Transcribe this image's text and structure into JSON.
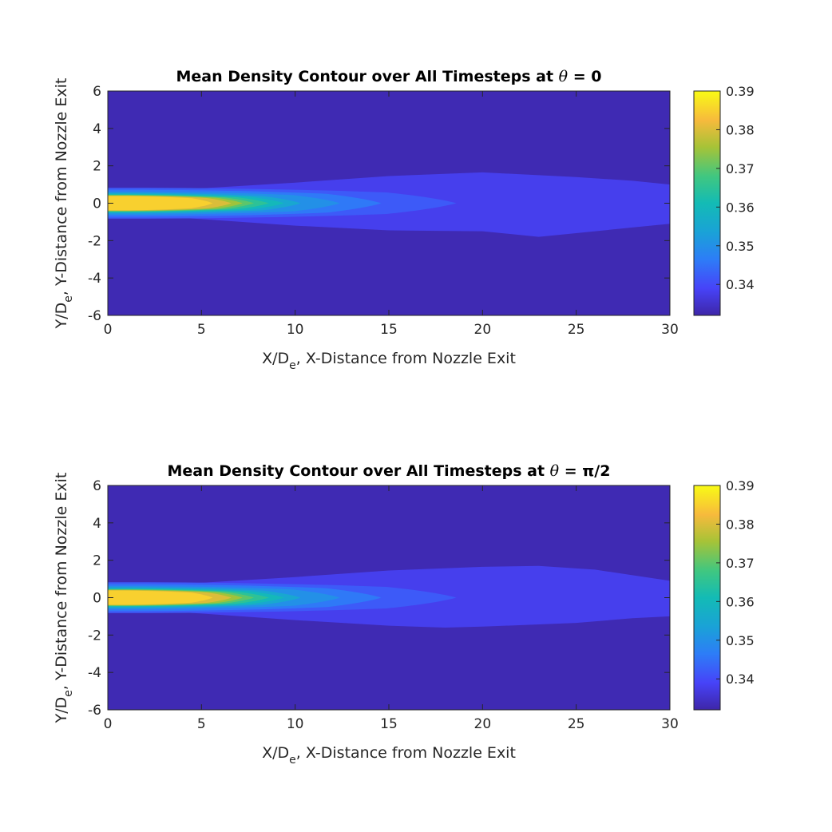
{
  "chart_data": [
    {
      "type": "heatmap",
      "title": "Mean Density Contour over All Timesteps at",
      "title_symbol": "θ",
      "title_value": " = 0",
      "xlabel": "X/D",
      "xlabel_sub": "e",
      "xlabel_rest": ", X-Distance from Nozzle Exit",
      "ylabel": "Y/D",
      "ylabel_sub": "e",
      "ylabel_rest": ", Y-Distance from Nozzle Exit",
      "xlim": [
        0,
        30
      ],
      "ylim": [
        -6,
        6
      ],
      "xticks": [
        "0",
        "5",
        "10",
        "15",
        "20",
        "25",
        "30"
      ],
      "yticks": [
        "6",
        "4",
        "2",
        "0",
        "-2",
        "-4",
        "-6"
      ],
      "colorbar": {
        "range": [
          0.332,
          0.39
        ],
        "ticks": [
          "0.39",
          "0.38",
          "0.37",
          "0.36",
          "0.35",
          "0.34"
        ],
        "colormap": "parula"
      },
      "background_value": 0.333,
      "contours": [
        {
          "value": 0.338,
          "x_end": 30,
          "upper": [
            [
              0,
              0.55
            ],
            [
              5,
              0.8
            ],
            [
              10,
              1.1
            ],
            [
              15,
              1.45
            ],
            [
              20,
              1.65
            ],
            [
              25,
              1.4
            ],
            [
              28,
              1.2
            ],
            [
              30,
              1.0
            ]
          ],
          "lower": [
            [
              0,
              -0.55
            ],
            [
              5,
              -0.85
            ],
            [
              10,
              -1.2
            ],
            [
              15,
              -1.45
            ],
            [
              20,
              -1.5
            ],
            [
              23,
              -1.8
            ],
            [
              25,
              -1.6
            ],
            [
              28,
              -1.3
            ],
            [
              30,
              -1.1
            ]
          ]
        },
        {
          "value": 0.342,
          "x_end": 18.6,
          "half_width": 0.82
        },
        {
          "value": 0.346,
          "x_end": 14.6,
          "half_width": 0.72
        },
        {
          "value": 0.35,
          "x_end": 12.4,
          "half_width": 0.62
        },
        {
          "value": 0.355,
          "x_end": 10.3,
          "half_width": 0.55
        },
        {
          "value": 0.36,
          "x_end": 9.4,
          "half_width": 0.5
        },
        {
          "value": 0.365,
          "x_end": 8.6,
          "half_width": 0.46
        },
        {
          "value": 0.37,
          "x_end": 7.8,
          "half_width": 0.44
        },
        {
          "value": 0.375,
          "x_end": 7.2,
          "half_width": 0.42
        },
        {
          "value": 0.38,
          "x_end": 6.6,
          "half_width": 0.4
        },
        {
          "value": 0.385,
          "x_end": 5.6,
          "half_width": 0.38
        }
      ]
    },
    {
      "type": "heatmap",
      "title": "Mean Density Contour over All Timesteps at",
      "title_symbol": "θ",
      "title_value": " = π/2",
      "xlabel": "X/D",
      "xlabel_sub": "e",
      "xlabel_rest": ", X-Distance from Nozzle Exit",
      "ylabel": "Y/D",
      "ylabel_sub": "e",
      "ylabel_rest": ", Y-Distance from Nozzle Exit",
      "xlim": [
        0,
        30
      ],
      "ylim": [
        -6,
        6
      ],
      "xticks": [
        "0",
        "5",
        "10",
        "15",
        "20",
        "25",
        "30"
      ],
      "yticks": [
        "6",
        "4",
        "2",
        "0",
        "-2",
        "-4",
        "-6"
      ],
      "colorbar": {
        "range": [
          0.332,
          0.39
        ],
        "ticks": [
          "0.39",
          "0.38",
          "0.37",
          "0.36",
          "0.35",
          "0.34"
        ],
        "colormap": "parula"
      },
      "background_value": 0.333,
      "contours": [
        {
          "value": 0.338,
          "x_end": 30,
          "upper": [
            [
              0,
              0.55
            ],
            [
              5,
              0.8
            ],
            [
              10,
              1.1
            ],
            [
              15,
              1.45
            ],
            [
              20,
              1.65
            ],
            [
              23,
              1.7
            ],
            [
              26,
              1.5
            ],
            [
              28,
              1.2
            ],
            [
              30,
              0.9
            ]
          ],
          "lower": [
            [
              0,
              -0.55
            ],
            [
              5,
              -0.85
            ],
            [
              10,
              -1.2
            ],
            [
              15,
              -1.5
            ],
            [
              18,
              -1.6
            ],
            [
              20,
              -1.55
            ],
            [
              25,
              -1.35
            ],
            [
              28,
              -1.1
            ],
            [
              30,
              -1.0
            ]
          ]
        },
        {
          "value": 0.342,
          "x_end": 18.6,
          "half_width": 0.82
        },
        {
          "value": 0.346,
          "x_end": 14.6,
          "half_width": 0.72
        },
        {
          "value": 0.35,
          "x_end": 12.4,
          "half_width": 0.62
        },
        {
          "value": 0.355,
          "x_end": 10.3,
          "half_width": 0.55
        },
        {
          "value": 0.36,
          "x_end": 9.4,
          "half_width": 0.5
        },
        {
          "value": 0.365,
          "x_end": 8.6,
          "half_width": 0.46
        },
        {
          "value": 0.37,
          "x_end": 7.8,
          "half_width": 0.44
        },
        {
          "value": 0.375,
          "x_end": 7.2,
          "half_width": 0.42
        },
        {
          "value": 0.38,
          "x_end": 6.6,
          "half_width": 0.4
        },
        {
          "value": 0.385,
          "x_end": 5.6,
          "half_width": 0.38
        }
      ]
    }
  ]
}
